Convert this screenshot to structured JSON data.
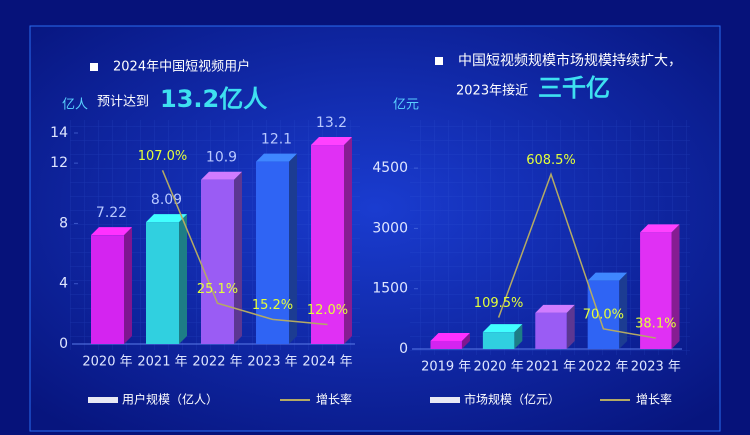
{
  "chart_data": [
    {
      "type": "bar",
      "title": "2024年中国短视频用户",
      "subtitle": "预计达到",
      "highlight": "13.2亿人",
      "y_label": "亿人",
      "categories": [
        "2020 年",
        "2021 年",
        "2022 年",
        "2023 年",
        "2024 年"
      ],
      "series": [
        {
          "name": "用户规模（亿人）",
          "color": "#e8e8f4",
          "colors": [
            "#d424f0",
            "#30d0e0",
            "#9a5cf4",
            "#2f64f4",
            "#e030f4"
          ],
          "values": [
            7.22,
            8.09,
            10.9,
            12.1,
            13.2
          ]
        },
        {
          "name": "增长率",
          "type": "line",
          "axis": "y2",
          "color": "#b4aa64",
          "values": [
            null,
            107.0,
            25.1,
            15.2,
            12.0
          ],
          "value_labels": [
            null,
            "107.0%",
            "25.1%",
            "15.2%",
            "12.0%"
          ]
        }
      ],
      "ylim": [
        0,
        14
      ],
      "yticks": [
        0,
        4,
        8,
        12,
        14
      ],
      "y2lim": [
        0,
        130
      ]
    },
    {
      "type": "bar",
      "title": "中国短视频规模市场规模持续扩大，",
      "subtitle": "2023年接近",
      "highlight": "三千亿",
      "y_label": "亿元",
      "categories": [
        "2019 年",
        "2020 年",
        "2021 年",
        "2022 年",
        "2023 年"
      ],
      "series": [
        {
          "name": "市场规模（亿元）",
          "color": "#e8e8f4",
          "colors": [
            "#d424f0",
            "#30d0e0",
            "#9a5cf4",
            "#2f64f4",
            "#e030f4"
          ],
          "values": [
            200,
            420,
            900,
            1700,
            2900
          ]
        },
        {
          "name": "增长率",
          "type": "line",
          "axis": "y2",
          "color": "#b4aa64",
          "values": [
            null,
            109.5,
            608.5,
            70.0,
            38.1
          ],
          "value_labels": [
            null,
            "109.5%",
            "608.5%",
            "70.0%",
            "38.1%"
          ]
        }
      ],
      "ylim": [
        0,
        5000
      ],
      "yticks": [
        0,
        1500,
        3000,
        4500
      ],
      "y2lim": [
        0,
        700
      ]
    }
  ]
}
